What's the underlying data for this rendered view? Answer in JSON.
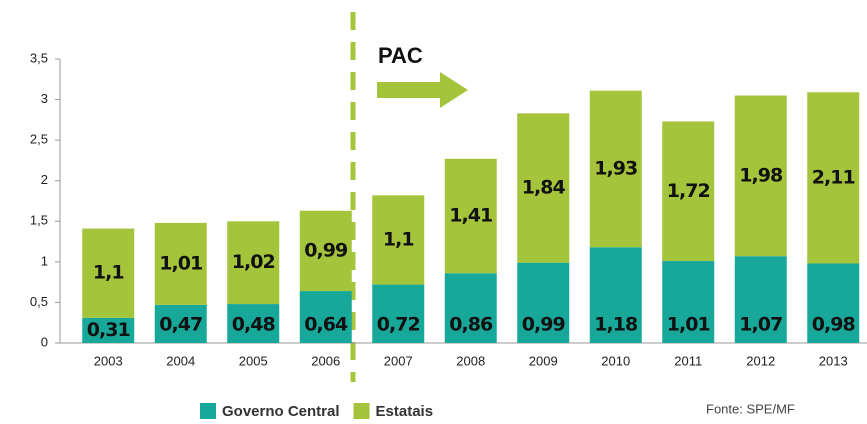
{
  "chart_data": {
    "type": "stacked_bar",
    "annotations": [
      "PAC"
    ],
    "source": "Fonte: SPE/MF",
    "categories": [
      "2003",
      "2004",
      "2005",
      "2006",
      "2007",
      "2008",
      "2009",
      "2010",
      "2011",
      "2012",
      "2013"
    ],
    "series": [
      {
        "name": "Governo Central",
        "color": "#17a89a",
        "values": [
          0.31,
          0.47,
          0.48,
          0.64,
          0.72,
          0.86,
          0.99,
          1.18,
          1.01,
          1.07,
          0.98
        ],
        "value_labels": [
          "0,31",
          "0,47",
          "0,48",
          "0,64",
          "0,72",
          "0,86",
          "0,99",
          "1,18",
          "1,01",
          "1,07",
          "0,98"
        ]
      },
      {
        "name": "Estatais",
        "color": "#a3c43b",
        "values": [
          1.1,
          1.01,
          1.02,
          0.99,
          1.1,
          1.41,
          1.84,
          1.93,
          1.72,
          1.98,
          2.11
        ],
        "value_labels": [
          "1,1",
          "1,01",
          "1,02",
          "0,99",
          "1,1",
          "1,41",
          "1,84",
          "1,93",
          "1,72",
          "1,98",
          "2,11"
        ]
      }
    ],
    "ylim": [
      0,
      3.5
    ],
    "yticks": [
      0,
      {
        "value": 0.5,
        "label": "0,5"
      },
      1,
      {
        "value": 1.5,
        "label": "1,5"
      },
      2,
      {
        "value": 2.5,
        "label": "2,5"
      },
      3,
      {
        "value": 3.5,
        "label": "3,5"
      }
    ],
    "grid": false,
    "legend": "bottom"
  }
}
